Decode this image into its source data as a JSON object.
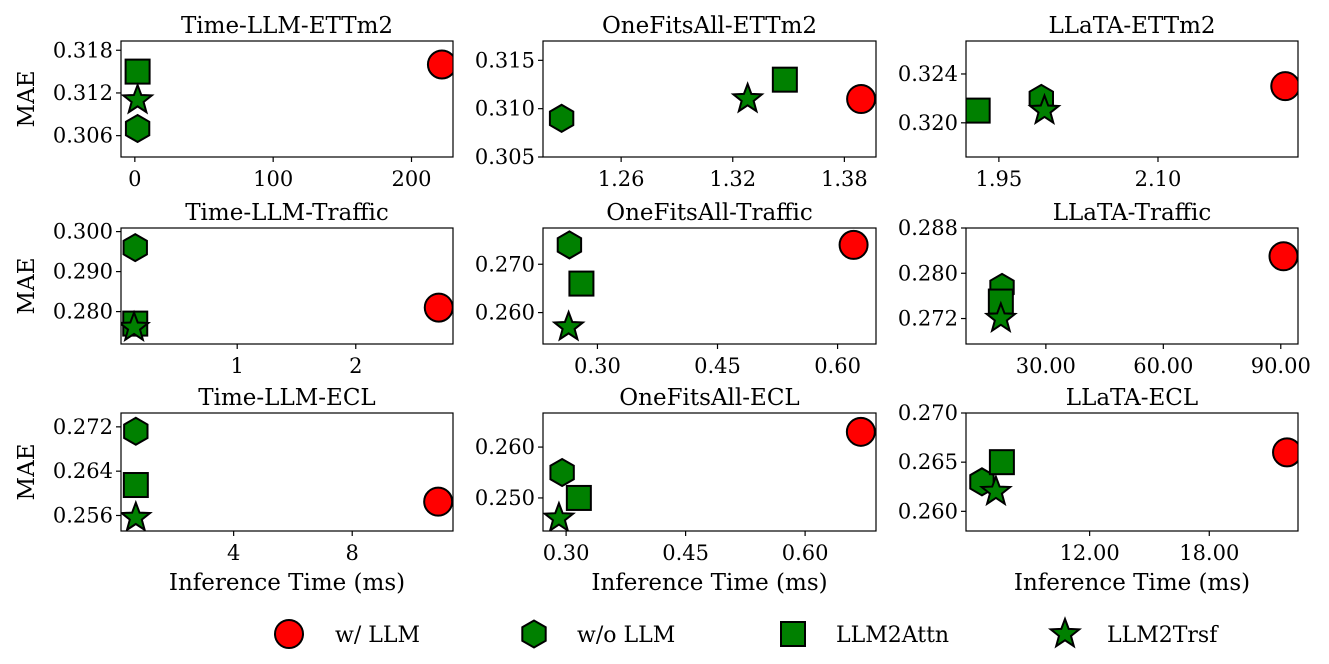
{
  "figure": {
    "colors": {
      "w_llm": "#ff0000",
      "wo_llm": "#008000",
      "llm2attn": "#008000",
      "llm2trsf": "#008000",
      "edge": "#000000"
    },
    "legend": {
      "placement": "bottom",
      "entries": [
        {
          "key": "w_llm",
          "label": "w/ LLM",
          "marker": "circle"
        },
        {
          "key": "wo_llm",
          "label": "w/o LLM",
          "marker": "hexagon"
        },
        {
          "key": "llm2attn",
          "label": "LLM2Attn",
          "marker": "square"
        },
        {
          "key": "llm2trsf",
          "label": "LLM2Trsf",
          "marker": "star"
        }
      ]
    }
  },
  "chart_data": [
    {
      "type": "scatter",
      "title": "Time-LLM-ETTm2",
      "xlabel": "",
      "ylabel": "MAE",
      "xlim": [
        -10,
        230
      ],
      "ylim": [
        0.303,
        0.3193
      ],
      "xticks": [
        0,
        100,
        200
      ],
      "xtick_labels": [
        "0",
        "100",
        "200"
      ],
      "yticks": [
        0.306,
        0.312,
        0.318
      ],
      "ytick_labels": [
        "0.306",
        "0.312",
        "0.318"
      ],
      "points": [
        {
          "series": "w_llm",
          "x": 222,
          "y": 0.316
        },
        {
          "series": "wo_llm",
          "x": 2,
          "y": 0.307
        },
        {
          "series": "llm2attn",
          "x": 2,
          "y": 0.315
        },
        {
          "series": "llm2trsf",
          "x": 2,
          "y": 0.311
        }
      ]
    },
    {
      "type": "scatter",
      "title": "OneFitsAll-ETTm2",
      "xlabel": "",
      "ylabel": "",
      "xlim": [
        1.218,
        1.397
      ],
      "ylim": [
        0.305,
        0.317
      ],
      "xticks": [
        1.26,
        1.32,
        1.38
      ],
      "xtick_labels": [
        "1.26",
        "1.32",
        "1.38"
      ],
      "yticks": [
        0.305,
        0.31,
        0.315
      ],
      "ytick_labels": [
        "0.305",
        "0.310",
        "0.315"
      ],
      "points": [
        {
          "series": "w_llm",
          "x": 1.389,
          "y": 0.311
        },
        {
          "series": "wo_llm",
          "x": 1.228,
          "y": 0.309
        },
        {
          "series": "llm2attn",
          "x": 1.348,
          "y": 0.313
        },
        {
          "series": "llm2trsf",
          "x": 1.328,
          "y": 0.311
        }
      ]
    },
    {
      "type": "scatter",
      "title": "LLaTA-ETTm2",
      "xlabel": "",
      "ylabel": "",
      "xlim": [
        1.919,
        2.232
      ],
      "ylim": [
        0.3172,
        0.3267
      ],
      "xticks": [
        1.95,
        2.1
      ],
      "xtick_labels": [
        "1.95",
        "2.10"
      ],
      "yticks": [
        0.32,
        0.324
      ],
      "ytick_labels": [
        "0.320",
        "0.324"
      ],
      "points": [
        {
          "series": "w_llm",
          "x": 2.22,
          "y": 0.323
        },
        {
          "series": "wo_llm",
          "x": 1.99,
          "y": 0.322
        },
        {
          "series": "llm2attn",
          "x": 1.93,
          "y": 0.321
        },
        {
          "series": "llm2trsf",
          "x": 1.993,
          "y": 0.321
        }
      ]
    },
    {
      "type": "scatter",
      "title": "Time-LLM-Traffic",
      "xlabel": "",
      "ylabel": "MAE",
      "xlim": [
        0.02,
        2.82
      ],
      "ylim": [
        0.2719,
        0.3009
      ],
      "xticks": [
        1,
        2
      ],
      "xtick_labels": [
        "1",
        "2"
      ],
      "yticks": [
        0.28,
        0.29,
        0.3
      ],
      "ytick_labels": [
        "0.280",
        "0.290",
        "0.300"
      ],
      "points": [
        {
          "series": "w_llm",
          "x": 2.7,
          "y": 0.281
        },
        {
          "series": "wo_llm",
          "x": 0.14,
          "y": 0.296
        },
        {
          "series": "llm2attn",
          "x": 0.14,
          "y": 0.277
        },
        {
          "series": "llm2trsf",
          "x": 0.13,
          "y": 0.276
        }
      ]
    },
    {
      "type": "scatter",
      "title": "OneFitsAll-Traffic",
      "xlabel": "",
      "ylabel": "",
      "xlim": [
        0.232,
        0.648
      ],
      "ylim": [
        0.2535,
        0.2775
      ],
      "xticks": [
        0.3,
        0.45,
        0.6
      ],
      "xtick_labels": [
        "0.30",
        "0.45",
        "0.60"
      ],
      "yticks": [
        0.26,
        0.27
      ],
      "ytick_labels": [
        "0.260",
        "0.270"
      ],
      "points": [
        {
          "series": "w_llm",
          "x": 0.62,
          "y": 0.274
        },
        {
          "series": "wo_llm",
          "x": 0.265,
          "y": 0.274
        },
        {
          "series": "llm2attn",
          "x": 0.28,
          "y": 0.266
        },
        {
          "series": "llm2trsf",
          "x": 0.264,
          "y": 0.257
        }
      ]
    },
    {
      "type": "scatter",
      "title": "LLaTA-Traffic",
      "xlabel": "",
      "ylabel": "",
      "xlim": [
        9.6,
        94.4
      ],
      "ylim": [
        0.2675,
        0.288
      ],
      "xticks": [
        30,
        60,
        90
      ],
      "xtick_labels": [
        "30.00",
        "60.00",
        "90.00"
      ],
      "yticks": [
        0.272,
        0.28,
        0.288
      ],
      "ytick_labels": [
        "0.272",
        "0.280",
        "0.288"
      ],
      "points": [
        {
          "series": "w_llm",
          "x": 90.7,
          "y": 0.283
        },
        {
          "series": "wo_llm",
          "x": 18.8,
          "y": 0.2775
        },
        {
          "series": "llm2attn",
          "x": 18.5,
          "y": 0.275
        },
        {
          "series": "llm2trsf",
          "x": 18.5,
          "y": 0.272
        }
      ]
    },
    {
      "type": "scatter",
      "title": "Time-LLM-ECL",
      "xlabel": "Inference Time (ms)",
      "ylabel": "MAE",
      "xlim": [
        0.2,
        11.4
      ],
      "ylim": [
        0.2532,
        0.2745
      ],
      "xticks": [
        4,
        8
      ],
      "xtick_labels": [
        "4",
        "8"
      ],
      "yticks": [
        0.256,
        0.264,
        0.272
      ],
      "ytick_labels": [
        "0.256",
        "0.264",
        "0.272"
      ],
      "points": [
        {
          "series": "w_llm",
          "x": 10.9,
          "y": 0.2585
        },
        {
          "series": "wo_llm",
          "x": 0.7,
          "y": 0.2712
        },
        {
          "series": "llm2attn",
          "x": 0.7,
          "y": 0.2615
        },
        {
          "series": "llm2trsf",
          "x": 0.7,
          "y": 0.2556
        }
      ]
    },
    {
      "type": "scatter",
      "title": "OneFitsAll-ECL",
      "xlabel": "Inference Time (ms)",
      "ylabel": "",
      "xlim": [
        0.271,
        0.689
      ],
      "ylim": [
        0.2435,
        0.2667
      ],
      "xticks": [
        0.3,
        0.45,
        0.6
      ],
      "xtick_labels": [
        "0.30",
        "0.45",
        "0.60"
      ],
      "yticks": [
        0.25,
        0.26
      ],
      "ytick_labels": [
        "0.250",
        "0.260"
      ],
      "points": [
        {
          "series": "w_llm",
          "x": 0.67,
          "y": 0.263
        },
        {
          "series": "wo_llm",
          "x": 0.295,
          "y": 0.255
        },
        {
          "series": "llm2attn",
          "x": 0.316,
          "y": 0.25
        },
        {
          "series": "llm2trsf",
          "x": 0.291,
          "y": 0.246
        }
      ]
    },
    {
      "type": "scatter",
      "title": "LLaTA-ECL",
      "xlabel": "Inference Time (ms)",
      "ylabel": "",
      "xlim": [
        5.8,
        22.45
      ],
      "ylim": [
        0.258,
        0.27
      ],
      "xticks": [
        12,
        18
      ],
      "xtick_labels": [
        "12.00",
        "18.00"
      ],
      "yticks": [
        0.26,
        0.265,
        0.27
      ],
      "ytick_labels": [
        "0.260",
        "0.265",
        "0.270"
      ],
      "points": [
        {
          "series": "w_llm",
          "x": 21.9,
          "y": 0.266
        },
        {
          "series": "wo_llm",
          "x": 6.6,
          "y": 0.263
        },
        {
          "series": "llm2attn",
          "x": 7.6,
          "y": 0.265
        },
        {
          "series": "llm2trsf",
          "x": 7.3,
          "y": 0.262
        }
      ]
    }
  ]
}
